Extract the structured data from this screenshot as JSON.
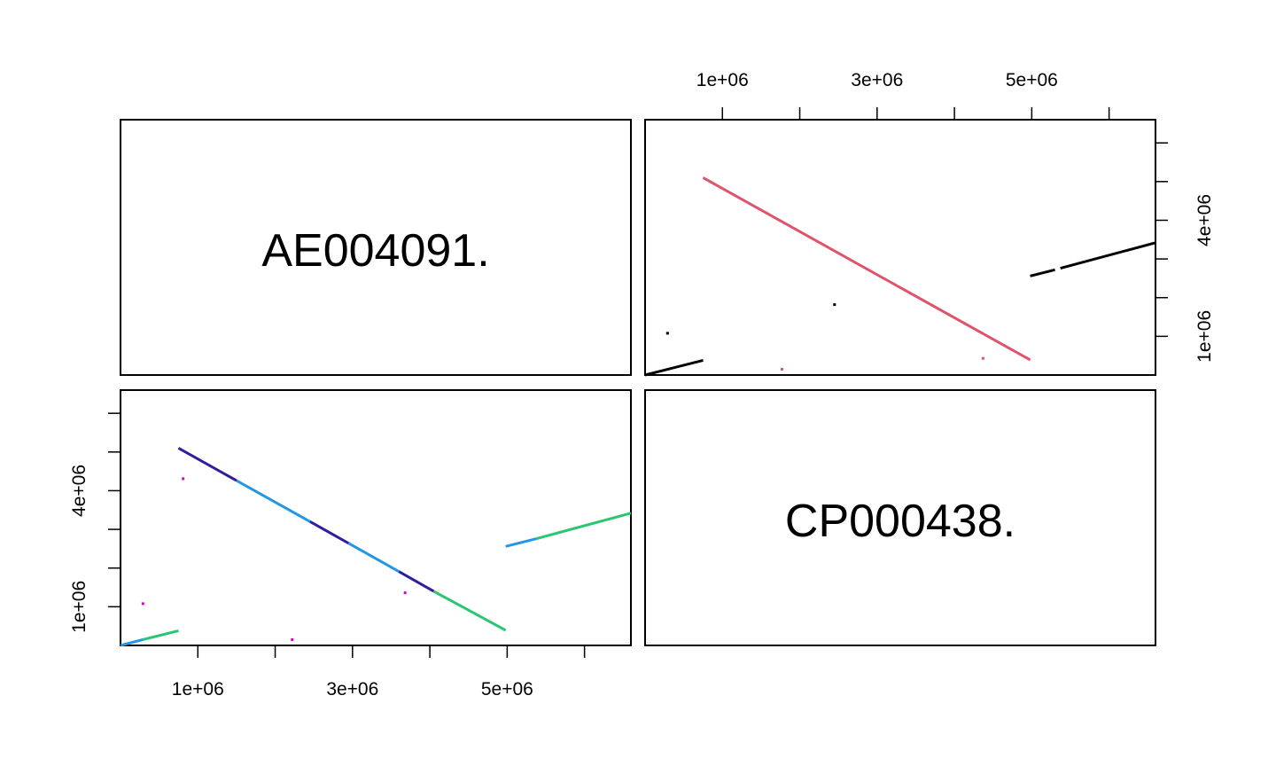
{
  "chart_data": {
    "type": "scatter",
    "kind": "pairwise dot plot matrix",
    "diagonal_labels": [
      "AE004091.",
      "CP000438."
    ],
    "axis_range_bp": [
      0,
      6600000
    ],
    "tick_values": [
      1000000,
      2000000,
      3000000,
      4000000,
      5000000,
      6000000
    ],
    "tick_labels": {
      "1000000": "1e+06",
      "3000000": "3e+06",
      "5000000": "5e+06",
      "4000000": "4e+06"
    },
    "panels": [
      {
        "position": "top-right",
        "x_axis": "AE004091.",
        "y_axis": "CP000438.",
        "axes_ticks": [
          "top",
          "right"
        ],
        "segments": [
          {
            "x": [
              0,
              750000
            ],
            "y": [
              0,
              380000
            ],
            "color": "#000000"
          },
          {
            "x": [
              750000,
              4980000
            ],
            "y": [
              5100000,
              390000
            ],
            "color": "#DF536B"
          },
          {
            "x": [
              4980000,
              5300000
            ],
            "y": [
              2560000,
              2720000
            ],
            "color": "#000000"
          },
          {
            "x": [
              5370000,
              6600000
            ],
            "y": [
              2760000,
              3420000
            ],
            "color": "#000000"
          }
        ],
        "points": [
          {
            "x": 290000,
            "y": 1080000,
            "color": "#000000"
          },
          {
            "x": 2450000,
            "y": 1820000,
            "color": "#000000"
          },
          {
            "x": 1770000,
            "y": 150000,
            "color": "#DF536B"
          },
          {
            "x": 4370000,
            "y": 430000,
            "color": "#DF536B"
          }
        ]
      },
      {
        "position": "bottom-left",
        "x_axis": "AE004091.",
        "y_axis": "CP000438.",
        "axes_ticks": [
          "bottom",
          "left"
        ],
        "segments": [
          {
            "x": [
              0,
              290000
            ],
            "y": [
              0,
              150000
            ],
            "color": "#2297E6"
          },
          {
            "x": [
              290000,
              750000
            ],
            "y": [
              150000,
              380000
            ],
            "color": "#28C76F"
          },
          {
            "x": [
              750000,
              1500000
            ],
            "y": [
              5100000,
              4260000
            ],
            "color": "#2E1E9E"
          },
          {
            "x": [
              1500000,
              2450000
            ],
            "y": [
              4260000,
              3200000
            ],
            "color": "#2297E6"
          },
          {
            "x": [
              2450000,
              2950000
            ],
            "y": [
              3200000,
              2640000
            ],
            "color": "#2E1E9E"
          },
          {
            "x": [
              2950000,
              3600000
            ],
            "y": [
              2640000,
              1910000
            ],
            "color": "#2297E6"
          },
          {
            "x": [
              3600000,
              4050000
            ],
            "y": [
              1910000,
              1400000
            ],
            "color": "#2E1E9E"
          },
          {
            "x": [
              4050000,
              4980000
            ],
            "y": [
              1400000,
              390000
            ],
            "color": "#28C76F"
          },
          {
            "x": [
              4980000,
              5380000
            ],
            "y": [
              2560000,
              2760000
            ],
            "color": "#2297E6"
          },
          {
            "x": [
              5380000,
              6600000
            ],
            "y": [
              2760000,
              3420000
            ],
            "color": "#28C76F"
          }
        ],
        "points": [
          {
            "x": 290000,
            "y": 1080000,
            "color": "#CD0BBC"
          },
          {
            "x": 810000,
            "y": 4310000,
            "color": "#CD0BBC"
          },
          {
            "x": 2220000,
            "y": 150000,
            "color": "#CD0BBC"
          },
          {
            "x": 3680000,
            "y": 1360000,
            "color": "#CD0BBC"
          }
        ]
      }
    ]
  }
}
